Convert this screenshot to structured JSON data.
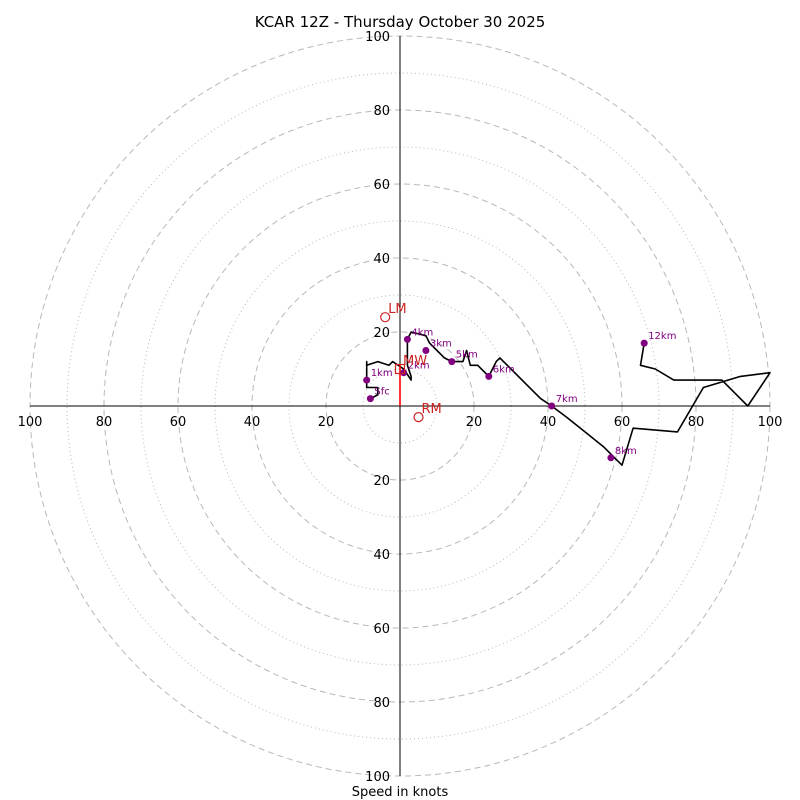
{
  "chart_data": {
    "type": "hodograph",
    "title": "KCAR 12Z - Thursday October 30 2025",
    "xlabel": "Speed in knots",
    "range_knots": 100,
    "ring_major_knots": [
      20,
      40,
      60,
      80,
      100
    ],
    "ring_minor_knots": [
      10,
      30,
      50,
      70,
      90
    ],
    "axis_ticks": {
      "top": [
        "100",
        "80",
        "60",
        "40",
        "20"
      ],
      "bottom": [
        "20",
        "40",
        "60",
        "80",
        "100"
      ],
      "left": [
        "100",
        "80",
        "60",
        "40",
        "20"
      ],
      "right": [
        "20",
        "40",
        "60",
        "80",
        "100"
      ]
    },
    "trace_uv": [
      [
        -8,
        2
      ],
      [
        -6,
        3
      ],
      [
        -6,
        5
      ],
      [
        -9,
        5
      ],
      [
        -9,
        8
      ],
      [
        -9,
        10
      ],
      [
        -9,
        12
      ],
      [
        -9,
        11
      ],
      [
        -6,
        12
      ],
      [
        -3,
        11
      ],
      [
        -2,
        12
      ],
      [
        1,
        10
      ],
      [
        3,
        7
      ],
      [
        3,
        8
      ],
      [
        2,
        11
      ],
      [
        2,
        15
      ],
      [
        2,
        18
      ],
      [
        3,
        20
      ],
      [
        7,
        19
      ],
      [
        8,
        17
      ],
      [
        10,
        15
      ],
      [
        11,
        14
      ],
      [
        12,
        13
      ],
      [
        14,
        12
      ],
      [
        17,
        12
      ],
      [
        18,
        15
      ],
      [
        19,
        11
      ],
      [
        21,
        11
      ],
      [
        23,
        9
      ],
      [
        24,
        8
      ],
      [
        26,
        12
      ],
      [
        27,
        13
      ],
      [
        30,
        10
      ],
      [
        34,
        6
      ],
      [
        38,
        2
      ],
      [
        41,
        0
      ],
      [
        45,
        -3
      ],
      [
        50,
        -7
      ],
      [
        55,
        -11
      ],
      [
        58,
        -14
      ],
      [
        60,
        -16
      ],
      [
        63,
        -6
      ],
      [
        75,
        -7
      ],
      [
        82,
        5
      ],
      [
        92,
        8
      ],
      [
        100,
        9
      ],
      [
        94,
        0
      ],
      [
        87,
        7
      ],
      [
        79,
        7
      ],
      [
        74,
        7
      ],
      [
        69,
        10
      ],
      [
        65,
        11
      ],
      [
        66,
        17
      ]
    ],
    "markers": [
      {
        "label": "Sfc",
        "u": -8,
        "v": 2
      },
      {
        "label": "1km",
        "u": -9,
        "v": 7
      },
      {
        "label": "2km",
        "u": 1,
        "v": 9
      },
      {
        "label": "3km",
        "u": 7,
        "v": 15
      },
      {
        "label": "4km",
        "u": 2,
        "v": 18
      },
      {
        "label": "5km",
        "u": 14,
        "v": 12
      },
      {
        "label": "6km",
        "u": 24,
        "v": 8
      },
      {
        "label": "7km",
        "u": 41,
        "v": 0
      },
      {
        "label": "8km",
        "u": 57,
        "v": -14
      },
      {
        "label": "12km",
        "u": 66,
        "v": 17
      }
    ],
    "motion": [
      {
        "label": "LM",
        "u": -4,
        "v": 24,
        "shape": "circle"
      },
      {
        "label": "MW",
        "u": 0,
        "v": 10,
        "shape": "square"
      },
      {
        "label": "RM",
        "u": 5,
        "v": -3,
        "shape": "circle"
      }
    ],
    "shear_vector": [
      [
        0,
        0
      ],
      [
        0,
        11
      ]
    ],
    "colors": {
      "trace": "#000000",
      "markers": "#800080",
      "motion": "#cc2222",
      "shear": "#ff0000",
      "grid": "#b8b8b8",
      "axes": "#000000"
    }
  }
}
